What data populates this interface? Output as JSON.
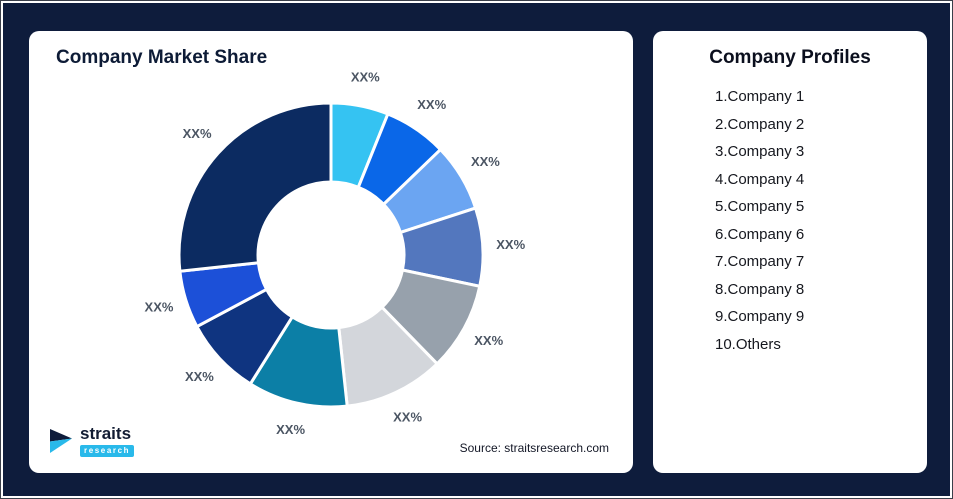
{
  "page": {
    "background_color": "#0E1C3C"
  },
  "chart_card": {
    "title": "Company Market Share",
    "source_text": "Source: straitsresearch.com",
    "logo": {
      "brand": "straits",
      "sub_brand": "research",
      "accent_color": "#29B9EA"
    }
  },
  "profiles_card": {
    "title": "Company Profiles",
    "items": [
      "1.Company 1",
      "2.Company 2",
      "3.Company 3",
      "4.Company 4",
      "5.Company 5",
      "6.Company 6",
      "7.Company 7",
      "8.Company 8",
      "9.Company 9",
      "10.Others"
    ]
  },
  "chart_data": {
    "type": "pie",
    "variant": "donut",
    "title": "Company Market Share",
    "legend_position": "none",
    "start_angle_deg": 0,
    "direction": "clockwise",
    "value_labels_shown_as": "XX%",
    "segments": [
      {
        "name": "Company 1",
        "label": "XX%",
        "share_pct_est": 6.1,
        "color": "#35C3F2"
      },
      {
        "name": "Company 2",
        "label": "XX%",
        "share_pct_est": 6.7,
        "color": "#0A67E8"
      },
      {
        "name": "Company 3",
        "label": "XX%",
        "share_pct_est": 7.2,
        "color": "#6BA5F2"
      },
      {
        "name": "Company 4",
        "label": "XX%",
        "share_pct_est": 8.3,
        "color": "#5377BE"
      },
      {
        "name": "Company 5",
        "label": "XX%",
        "share_pct_est": 9.4,
        "color": "#97A1AC"
      },
      {
        "name": "Company 6",
        "label": "XX%",
        "share_pct_est": 10.6,
        "color": "#D3D6DB"
      },
      {
        "name": "Company 7",
        "label": "XX%",
        "share_pct_est": 10.6,
        "color": "#0C7FA6"
      },
      {
        "name": "Company 8",
        "label": "XX%",
        "share_pct_est": 8.3,
        "color": "#0F3480"
      },
      {
        "name": "Company 9",
        "label": "XX%",
        "share_pct_est": 6.1,
        "color": "#1C50D8"
      },
      {
        "name": "Others",
        "label": "XX%",
        "share_pct_est": 26.7,
        "color": "#0C2B61"
      }
    ],
    "geometry": {
      "center": [
        302,
        224
      ],
      "outer_radius": 152,
      "inner_radius": 73,
      "label_radius": 180,
      "gap_stroke": "#FFFFFF"
    }
  }
}
